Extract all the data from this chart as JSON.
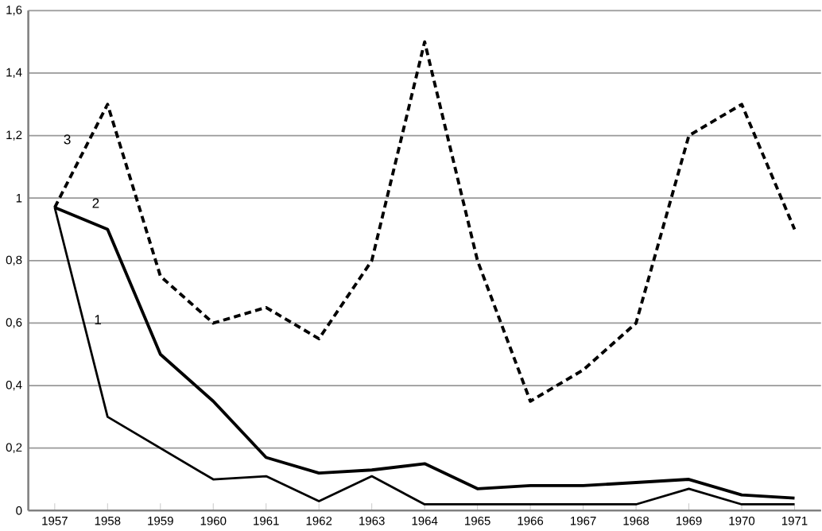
{
  "chart_data": {
    "type": "line",
    "categories": [
      "1957",
      "1958",
      "1959",
      "1960",
      "1961",
      "1962",
      "1963",
      "1964",
      "1965",
      "1966",
      "1967",
      "1968",
      "1969",
      "1970",
      "1971"
    ],
    "series": [
      {
        "name": "1",
        "color": "#000000",
        "line_style": "solid",
        "values": [
          0.97,
          0.3,
          0.2,
          0.1,
          0.11,
          0.03,
          0.11,
          0.02,
          0.02,
          0.02,
          0.02,
          0.02,
          0.07,
          0.02,
          0.02
        ]
      },
      {
        "name": "2",
        "color": "#000000",
        "line_style": "solid",
        "values": [
          0.97,
          0.9,
          0.5,
          0.35,
          0.17,
          0.12,
          0.13,
          0.15,
          0.07,
          0.08,
          0.08,
          0.09,
          0.1,
          0.05,
          0.04
        ]
      },
      {
        "name": "3",
        "color": "#000000",
        "line_style": "dashed",
        "values": [
          0.97,
          1.3,
          0.75,
          0.6,
          0.65,
          0.55,
          0.8,
          1.5,
          0.8,
          0.35,
          0.45,
          0.6,
          1.2,
          1.3,
          0.9
        ]
      }
    ],
    "ylim": [
      0,
      1.6
    ],
    "yticks": [
      {
        "value": 0,
        "label": "0"
      },
      {
        "value": 0.2,
        "label": "0,2"
      },
      {
        "value": 0.4,
        "label": "0,4"
      },
      {
        "value": 0.6,
        "label": "0,6"
      },
      {
        "value": 0.8,
        "label": "0,8"
      },
      {
        "value": 1,
        "label": "1"
      },
      {
        "value": 1.2,
        "label": "1,2"
      },
      {
        "value": 1.4,
        "label": "1,4"
      },
      {
        "value": 1.6,
        "label": "1,6"
      }
    ],
    "grid": "y",
    "marker": "none",
    "legend": false
  }
}
